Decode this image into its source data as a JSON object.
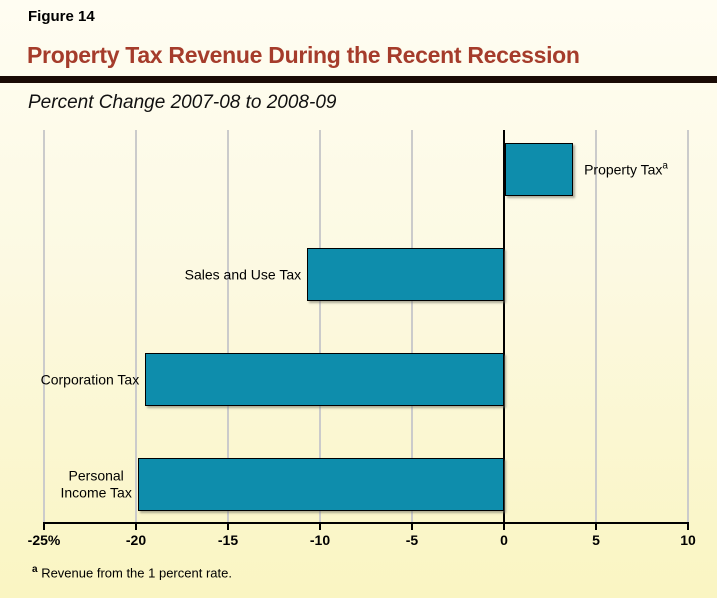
{
  "figure_label": "Figure 14",
  "title": "Property Tax Revenue During the Recent Recession",
  "subtitle": "Percent Change 2007-08 to 2008-09",
  "footnote": {
    "marker": "a",
    "text": "Revenue from the 1 percent rate."
  },
  "colors": {
    "title": "#A53C2B",
    "rule": "#1A0B05",
    "bar_fill": "#0E8DAC",
    "gridline": "#CBCBCB",
    "axis": "#000000",
    "background_top": "#FFFDF2",
    "background_bottom": "#FAF5C2"
  },
  "chart_data": {
    "type": "bar",
    "orientation": "horizontal",
    "title": "Property Tax Revenue During the Recent Recession",
    "subtitle": "Percent Change 2007-08 to 2008-09",
    "grid": true,
    "legend": false,
    "x_axis": {
      "min": -25,
      "max": 10,
      "tick_values": [
        -25,
        -20,
        -15,
        -10,
        -5,
        0,
        5,
        10
      ],
      "tick_labels": [
        "-25%",
        "-20",
        "-15",
        "-10",
        "-5",
        "0",
        "5",
        "10"
      ]
    },
    "categories": [
      "Property Tax",
      "Sales and Use Tax",
      "Corporation Tax",
      "Personal Income Tax"
    ],
    "values": [
      3.7,
      -10.7,
      -19.5,
      -19.9
    ],
    "bars": [
      {
        "label": "Property Tax",
        "label_superscript": "a",
        "value": 3.7,
        "label_side": "right"
      },
      {
        "label": "Sales and Use Tax",
        "value": -10.7,
        "label_side": "left"
      },
      {
        "label": "Corporation Tax",
        "value": -19.5,
        "label_side": "left"
      },
      {
        "label": "Personal Income Tax",
        "label_lines": [
          "Personal",
          "Income Tax"
        ],
        "value": -19.9,
        "label_side": "left"
      }
    ]
  }
}
